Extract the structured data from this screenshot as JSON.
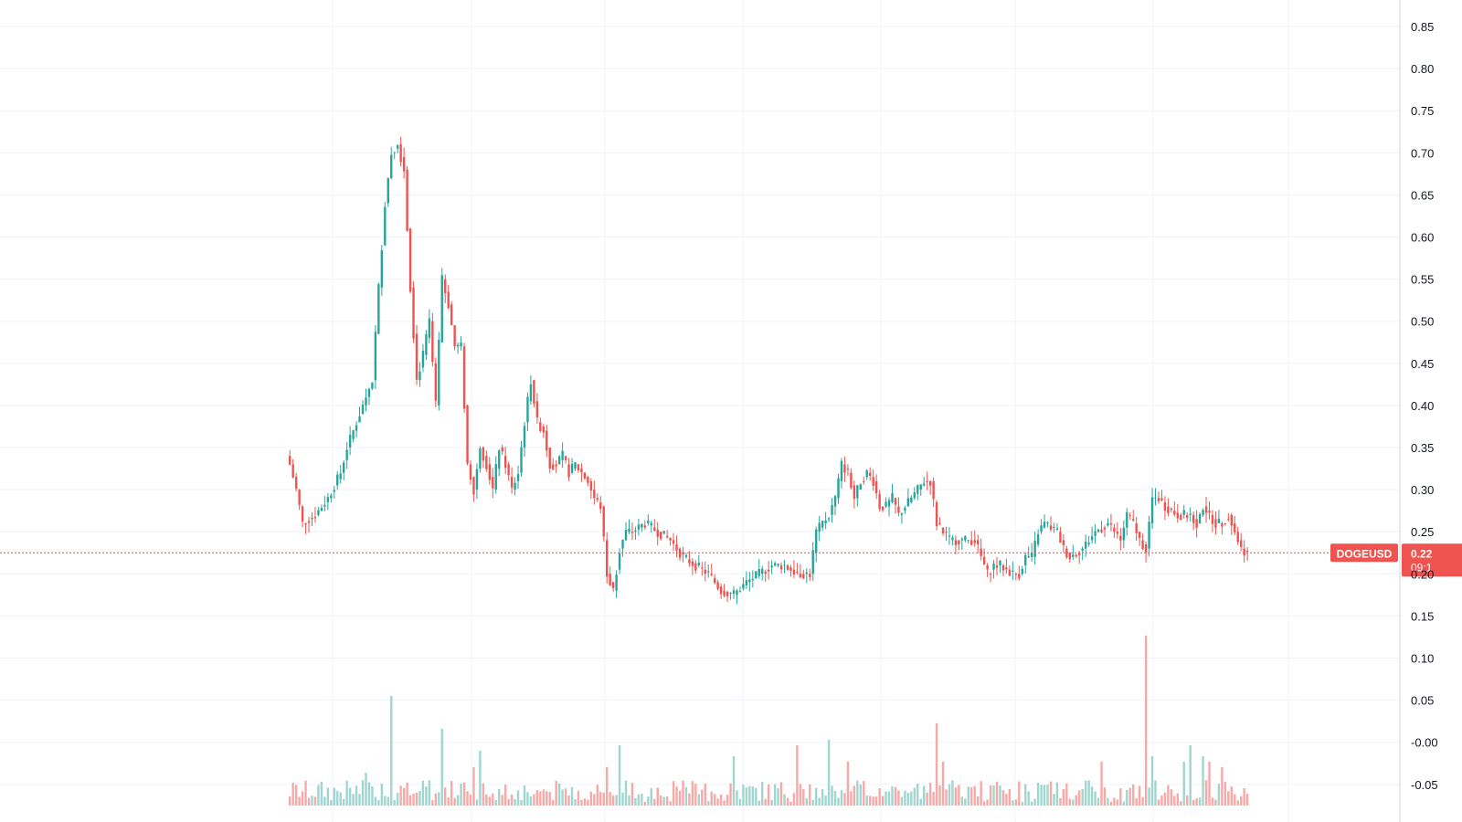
{
  "chart_data": {
    "type": "candlestick",
    "symbol": "DOGEUSD",
    "price_axis": {
      "ticks": [
        "0.85",
        "0.80",
        "0.75",
        "0.70",
        "0.65",
        "0.60",
        "0.55",
        "0.50",
        "0.45",
        "0.40",
        "0.35",
        "0.30",
        "0.25",
        "0.20",
        "0.15",
        "0.10",
        "0.05",
        "-0.00",
        "-0.05"
      ],
      "min": -0.06,
      "max": 0.87
    },
    "grid": true,
    "last_price": {
      "value": 0.225,
      "label": "0.22",
      "countdown": "09:1"
    },
    "colors": {
      "up": "#26a69a",
      "down": "#ef5350",
      "up_volume": "#9fd6d0",
      "down_volume": "#f7a9a7",
      "grid": "#f0f3fa",
      "last_price_line": "#ef5350",
      "axis_text": "#131722"
    },
    "candles_knots": [
      [
        0,
        0.33
      ],
      [
        2,
        0.3
      ],
      [
        4,
        0.26
      ],
      [
        8,
        0.27
      ],
      [
        12,
        0.29
      ],
      [
        16,
        0.32
      ],
      [
        18,
        0.35
      ],
      [
        22,
        0.39
      ],
      [
        26,
        0.43
      ],
      [
        28,
        0.54
      ],
      [
        30,
        0.64
      ],
      [
        32,
        0.7
      ],
      [
        34,
        0.71
      ],
      [
        36,
        0.68
      ],
      [
        38,
        0.54
      ],
      [
        40,
        0.43
      ],
      [
        42,
        0.46
      ],
      [
        44,
        0.5
      ],
      [
        46,
        0.4
      ],
      [
        48,
        0.55
      ],
      [
        50,
        0.52
      ],
      [
        52,
        0.47
      ],
      [
        54,
        0.47
      ],
      [
        56,
        0.33
      ],
      [
        58,
        0.3
      ],
      [
        60,
        0.35
      ],
      [
        62,
        0.33
      ],
      [
        64,
        0.3
      ],
      [
        66,
        0.35
      ],
      [
        68,
        0.33
      ],
      [
        70,
        0.3
      ],
      [
        72,
        0.32
      ],
      [
        74,
        0.38
      ],
      [
        76,
        0.43
      ],
      [
        78,
        0.38
      ],
      [
        80,
        0.37
      ],
      [
        82,
        0.33
      ],
      [
        84,
        0.33
      ],
      [
        86,
        0.34
      ],
      [
        88,
        0.32
      ],
      [
        90,
        0.33
      ],
      [
        92,
        0.32
      ],
      [
        94,
        0.31
      ],
      [
        96,
        0.29
      ],
      [
        98,
        0.28
      ],
      [
        100,
        0.2
      ],
      [
        102,
        0.18
      ],
      [
        104,
        0.23
      ],
      [
        106,
        0.25
      ],
      [
        108,
        0.25
      ],
      [
        112,
        0.26
      ],
      [
        116,
        0.25
      ],
      [
        120,
        0.24
      ],
      [
        124,
        0.22
      ],
      [
        128,
        0.21
      ],
      [
        132,
        0.2
      ],
      [
        136,
        0.18
      ],
      [
        140,
        0.175
      ],
      [
        144,
        0.19
      ],
      [
        148,
        0.2
      ],
      [
        152,
        0.21
      ],
      [
        156,
        0.21
      ],
      [
        160,
        0.2
      ],
      [
        164,
        0.2
      ],
      [
        166,
        0.25
      ],
      [
        168,
        0.26
      ],
      [
        170,
        0.27
      ],
      [
        172,
        0.29
      ],
      [
        174,
        0.33
      ],
      [
        176,
        0.32
      ],
      [
        178,
        0.29
      ],
      [
        180,
        0.31
      ],
      [
        182,
        0.32
      ],
      [
        184,
        0.31
      ],
      [
        186,
        0.28
      ],
      [
        188,
        0.28
      ],
      [
        190,
        0.29
      ],
      [
        192,
        0.27
      ],
      [
        194,
        0.28
      ],
      [
        196,
        0.29
      ],
      [
        198,
        0.3
      ],
      [
        200,
        0.31
      ],
      [
        202,
        0.31
      ],
      [
        204,
        0.26
      ],
      [
        206,
        0.25
      ],
      [
        208,
        0.24
      ],
      [
        212,
        0.24
      ],
      [
        216,
        0.24
      ],
      [
        218,
        0.22
      ],
      [
        220,
        0.2
      ],
      [
        222,
        0.21
      ],
      [
        224,
        0.21
      ],
      [
        228,
        0.2
      ],
      [
        230,
        0.2
      ],
      [
        232,
        0.22
      ],
      [
        234,
        0.22
      ],
      [
        236,
        0.25
      ],
      [
        238,
        0.26
      ],
      [
        242,
        0.25
      ],
      [
        244,
        0.23
      ],
      [
        246,
        0.22
      ],
      [
        250,
        0.23
      ],
      [
        254,
        0.25
      ],
      [
        258,
        0.26
      ],
      [
        262,
        0.24
      ],
      [
        264,
        0.27
      ],
      [
        266,
        0.26
      ],
      [
        268,
        0.24
      ],
      [
        270,
        0.23
      ],
      [
        272,
        0.29
      ],
      [
        274,
        0.29
      ],
      [
        276,
        0.28
      ],
      [
        280,
        0.27
      ],
      [
        284,
        0.27
      ],
      [
        286,
        0.26
      ],
      [
        288,
        0.28
      ],
      [
        290,
        0.27
      ],
      [
        292,
        0.26
      ],
      [
        294,
        0.26
      ],
      [
        296,
        0.27
      ],
      [
        298,
        0.25
      ],
      [
        300,
        0.23
      ],
      [
        302,
        0.225
      ]
    ],
    "volume_spikes": {
      "24": 0.3,
      "32": 1.0,
      "48": 0.7,
      "58": 0.35,
      "60": 0.5,
      "100": 0.35,
      "104": 0.55,
      "140": 0.45,
      "160": 0.55,
      "170": 0.6,
      "176": 0.4,
      "204": 0.75,
      "206": 0.4,
      "256": 0.4,
      "270": 1.55,
      "272": 0.45,
      "282": 0.4,
      "284": 0.55,
      "288": 0.45,
      "290": 0.4,
      "294": 0.35
    }
  }
}
